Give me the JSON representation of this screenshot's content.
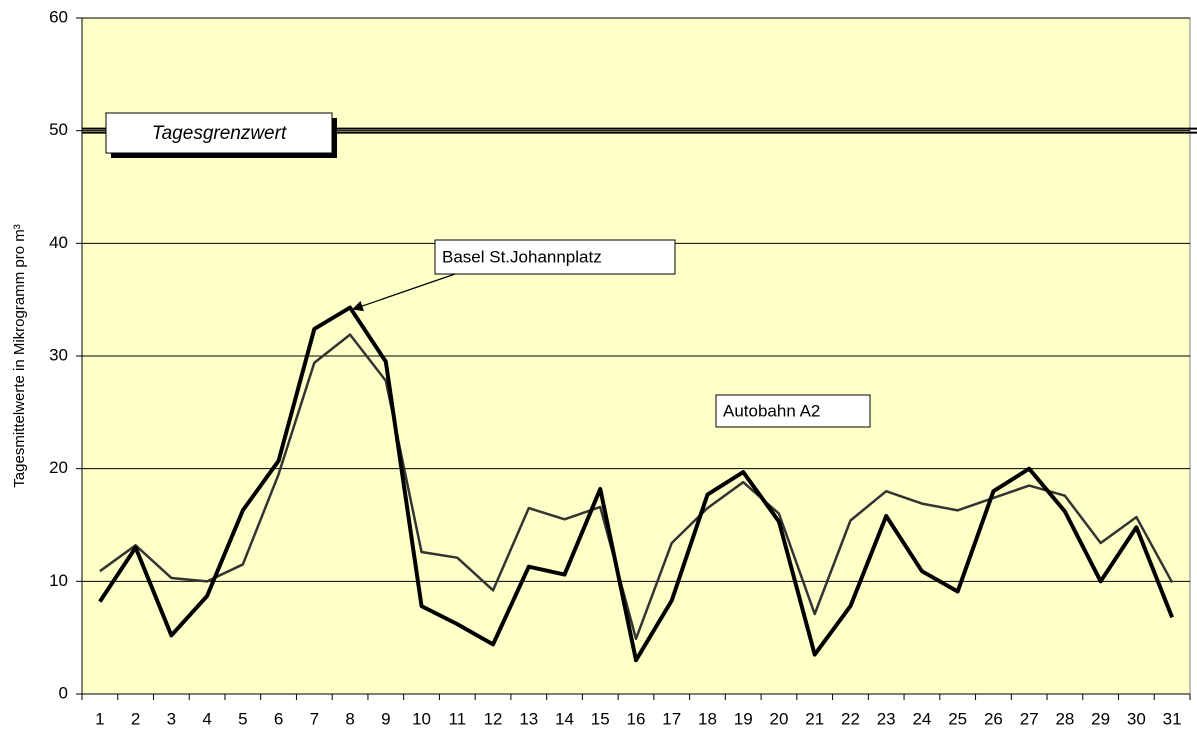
{
  "chart_data": {
    "type": "line",
    "y_label": "Tagesmittelwerte in Mikrogramm pro m³",
    "categories": [
      "1",
      "2",
      "3",
      "4",
      "5",
      "6",
      "7",
      "8",
      "9",
      "10",
      "11",
      "12",
      "13",
      "14",
      "15",
      "16",
      "17",
      "18",
      "19",
      "20",
      "21",
      "22",
      "23",
      "24",
      "25",
      "26",
      "27",
      "28",
      "29",
      "30",
      "31"
    ],
    "series": [
      {
        "name": "Basel St.Johannplatz",
        "color": "#000000",
        "width": 4,
        "values": [
          8.2,
          13.0,
          5.2,
          8.7,
          16.3,
          20.7,
          32.4,
          34.3,
          29.5,
          7.8,
          6.2,
          4.4,
          11.3,
          10.6,
          18.2,
          3.0,
          8.3,
          17.7,
          19.7,
          15.3,
          3.5,
          7.8,
          15.8,
          10.9,
          9.1,
          18.0,
          20.0,
          16.2,
          10.0,
          14.8,
          6.8
        ]
      },
      {
        "name": "Autobahn A2",
        "color": "#333333",
        "width": 2.5,
        "values": [
          10.9,
          13.2,
          10.3,
          10.0,
          11.5,
          19.5,
          29.4,
          31.9,
          27.8,
          12.6,
          12.1,
          9.2,
          16.5,
          15.5,
          16.6,
          4.9,
          13.4,
          16.5,
          18.8,
          16.0,
          7.1,
          15.4,
          18.0,
          16.9,
          16.3,
          17.4,
          18.5,
          17.6,
          13.4,
          15.7,
          9.9
        ]
      }
    ],
    "threshold": {
      "value": 50,
      "label": "Tagesgrenzwert"
    },
    "ylim": [
      0,
      60
    ],
    "yticks": [
      0,
      10,
      20,
      30,
      40,
      50,
      60
    ],
    "grid": true,
    "background": "#ffffc8"
  }
}
